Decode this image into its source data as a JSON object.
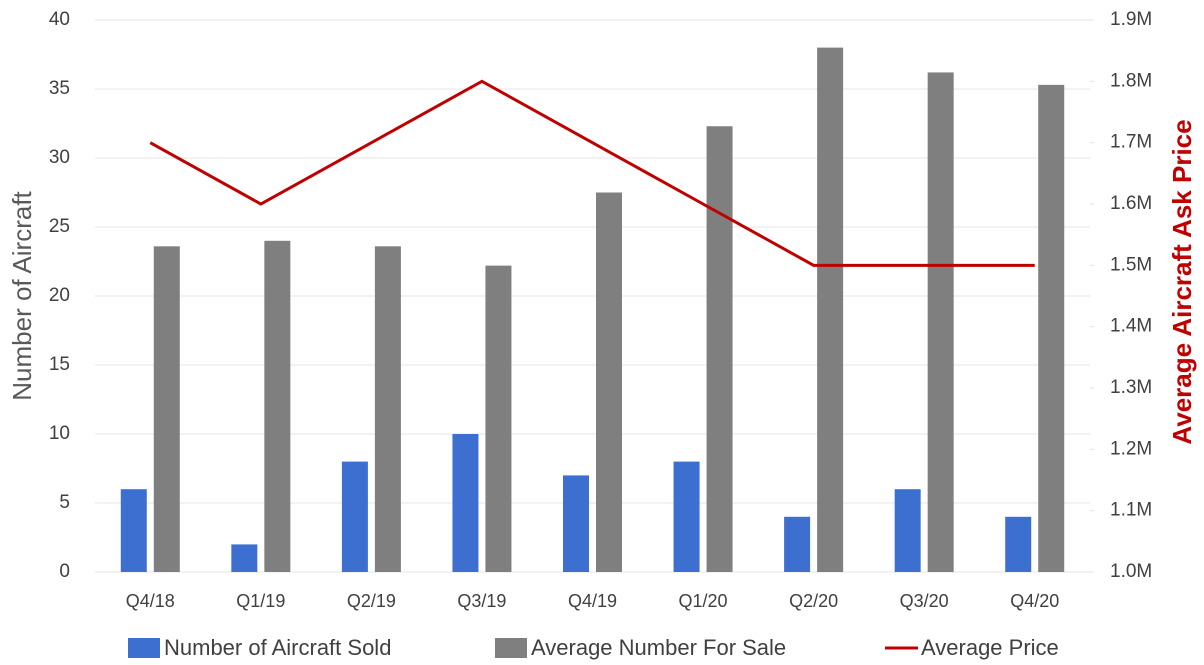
{
  "chart_data": {
    "type": "bar",
    "categories": [
      "Q4/18",
      "Q1/19",
      "Q2/19",
      "Q3/19",
      "Q4/19",
      "Q1/20",
      "Q2/20",
      "Q3/20",
      "Q4/20"
    ],
    "series": [
      {
        "name": "Number of Aircraft Sold",
        "color": "#3d6fd0",
        "type": "bar",
        "values": [
          6,
          2,
          8,
          10,
          7,
          8,
          4,
          6,
          4
        ]
      },
      {
        "name": "Average Number For Sale",
        "color": "#7f7f7f",
        "type": "bar",
        "values": [
          23.6,
          24,
          23.6,
          22.2,
          27.5,
          32.3,
          38,
          36.2,
          35.3
        ]
      },
      {
        "name": "Average Price",
        "color": "#c00000",
        "type": "line",
        "axis": "y2",
        "values": [
          1700000,
          1600000,
          1700000,
          1800000,
          1700000,
          1600000,
          1500000,
          1500000,
          1500000
        ]
      }
    ],
    "y_label": "Number of Aircraft",
    "y2_label": "Average Aircraft Ask Price",
    "ylim": [
      0,
      40
    ],
    "yticks": [
      0,
      5,
      10,
      15,
      20,
      25,
      30,
      35,
      40
    ],
    "y2lim": [
      1000000,
      1900000
    ],
    "y2ticks": [
      {
        "value": 1000000,
        "label": "1.0M"
      },
      {
        "value": 1100000,
        "label": "1.1M"
      },
      {
        "value": 1200000,
        "label": "1.2M"
      },
      {
        "value": 1300000,
        "label": "1.3M"
      },
      {
        "value": 1400000,
        "label": "1.4M"
      },
      {
        "value": 1500000,
        "label": "1.5M"
      },
      {
        "value": 1600000,
        "label": "1.6M"
      },
      {
        "value": 1700000,
        "label": "1.7M"
      },
      {
        "value": 1800000,
        "label": "1.8M"
      },
      {
        "value": 1900000,
        "label": "1.9M"
      }
    ],
    "grid": true,
    "legend": "bottom"
  }
}
